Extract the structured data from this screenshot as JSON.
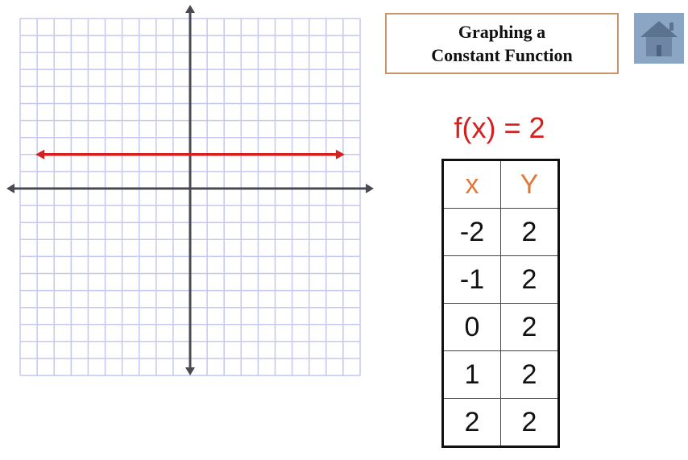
{
  "title": {
    "line1": "Graphing a",
    "line2": "Constant Function"
  },
  "home_button": {
    "icon": "home-icon"
  },
  "function_label": "f(x) = 2",
  "table": {
    "headers": [
      "x",
      "Y"
    ],
    "rows": [
      [
        "-2",
        "2"
      ],
      [
        "-1",
        "2"
      ],
      [
        "0",
        "2"
      ],
      [
        "1",
        "2"
      ],
      [
        "2",
        "2"
      ]
    ]
  },
  "colors": {
    "line": "#d62020",
    "axis": "#4a4a55",
    "grid": "#c5c8f0",
    "header": "#e07a3a"
  },
  "chart_data": {
    "type": "line",
    "series": [
      {
        "x": [
          -9,
          9
        ],
        "y": [
          2,
          2
        ]
      }
    ],
    "xlim": [
      -10,
      10
    ],
    "ylim": [
      -11,
      10
    ],
    "grid": true,
    "arrows_on_line": true
  }
}
